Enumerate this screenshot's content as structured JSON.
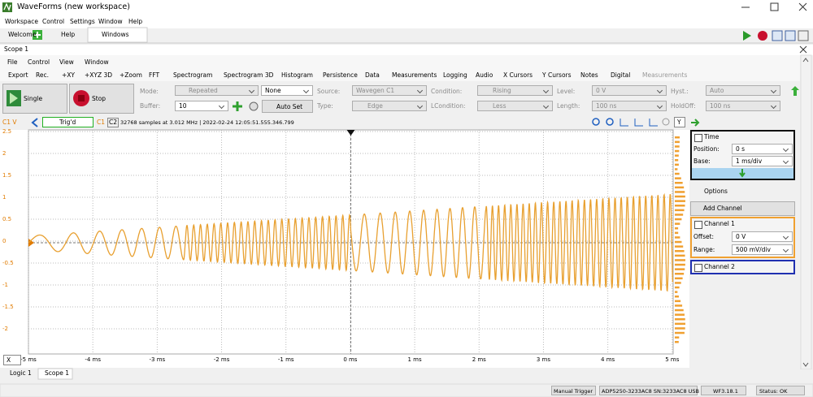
{
  "window": {
    "title": "WaveForms (new workspace)",
    "menu": [
      "Workspace",
      "Control",
      "Settings",
      "Window",
      "Help"
    ],
    "tabs": [
      "Welcome",
      "Help",
      "Windows"
    ]
  },
  "scope": {
    "title": "Scope 1",
    "menu": [
      "File",
      "Control",
      "View",
      "Window"
    ],
    "toolbar": [
      "Export",
      "Rec.",
      "+XY",
      "+XYZ 3D",
      "+Zoom",
      "FFT",
      "Spectrogram",
      "Spectrogram 3D",
      "Histogram",
      "Persistence",
      "Data",
      "Measurements",
      "Logging",
      "Audio",
      "X Cursors",
      "Y Cursors",
      "Notes",
      "Digital",
      "Measurements"
    ],
    "controls": {
      "single": "Single",
      "stop": "Stop",
      "mode_label": "Mode:",
      "mode": "Repeated",
      "buffer_label": "Buffer:",
      "buffer": "10",
      "trigger": "None",
      "auto_set": "Auto Set",
      "source_label": "Source:",
      "source": "Wavegen C1",
      "type_label": "Type:",
      "type": "Edge",
      "condition_label": "Condition:",
      "condition": "Rising",
      "lcondition_label": "LCondition:",
      "lcondition": "Less",
      "level_label": "Level:",
      "level": "0 V",
      "length_label": "Length:",
      "length": "100 ns",
      "hyst_label": "Hyst.:",
      "hyst": "Auto",
      "holdoff_label": "HoldOff:",
      "holdoff": "100 ns"
    },
    "plot": {
      "channel_unit": "C1 V",
      "status": "Trig'd",
      "c1": "C1",
      "c2": "C2",
      "info": "32768 samples at 3.012 MHz | 2022-02-24 12:05:51.555.346.799",
      "y_button": "Y",
      "x_button": "X",
      "yticks": [
        "2.5",
        "2",
        "1.5",
        "1",
        "0.5",
        "0",
        "-0.5",
        "-1",
        "-1.5",
        "-2"
      ],
      "xticks": [
        "-5 ms",
        "-4 ms",
        "-3 ms",
        "-2 ms",
        "-1 ms",
        "0 ms",
        "1 ms",
        "2 ms",
        "3 ms",
        "4 ms",
        "5 ms"
      ]
    },
    "panel": {
      "time": "Time",
      "position_label": "Position:",
      "position": "0 s",
      "base_label": "Base:",
      "base": "1 ms/div",
      "options": "Options",
      "add_channel": "Add Channel",
      "channel1": "Channel 1",
      "offset_label": "Offset:",
      "offset": "0 V",
      "range_label": "Range:",
      "range": "500 mV/div",
      "channel2": "Channel 2"
    },
    "bottom_tabs": [
      "Logic 1",
      "Scope 1"
    ]
  },
  "status_bar": {
    "trigger": "Manual Trigger",
    "device": "ADP5250-3233AC8 SN:3233AC8 USB",
    "version": "WF3.18.1",
    "status": "Status: OK"
  }
}
